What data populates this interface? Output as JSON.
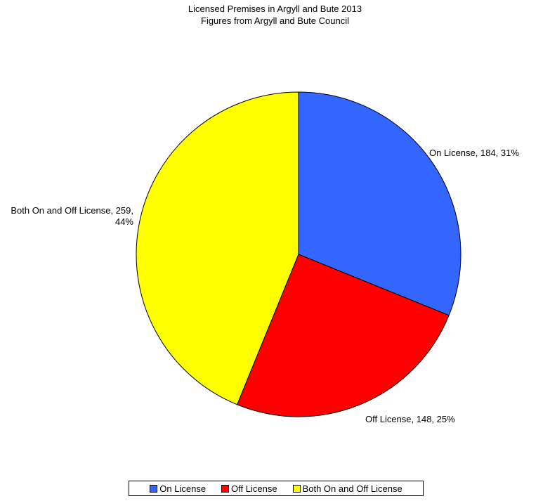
{
  "chart_data": {
    "type": "pie",
    "title": "Licensed Premises in Argyll and Bute 2013",
    "subtitle": "Figures from Argyll and Bute Council",
    "categories": [
      "On License",
      "Off License",
      "Both On and Off License"
    ],
    "values": [
      184,
      148,
      259
    ],
    "value_labels": [
      "On License, 184, 31%",
      "Off License, 148, 25%",
      "Both On and Off License, 259, 44%"
    ],
    "colors": [
      "#3366ff",
      "#ff0000",
      "#ffff00"
    ],
    "legend": "bottom"
  }
}
